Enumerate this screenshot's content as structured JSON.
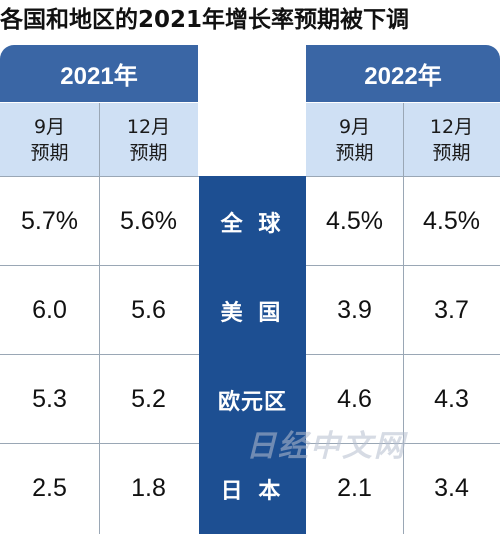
{
  "title": "各国和地区的2021年增长率预期被下调",
  "watermark": "日经中文网",
  "chart_data": {
    "type": "table",
    "title": "各国和地区的2021年增长率预期被下调",
    "year_headers": [
      "2021年",
      "2022年"
    ],
    "column_headers": [
      {
        "line1": "9月",
        "line2": "预期"
      },
      {
        "line1": "12月",
        "line2": "预期"
      },
      {
        "line1": "9月",
        "line2": "预期"
      },
      {
        "line1": "12月",
        "line2": "预期"
      }
    ],
    "rows": [
      {
        "region": "全 球",
        "values": [
          "5.7%",
          "5.6%",
          "4.5%",
          "4.5%"
        ]
      },
      {
        "region": "美 国",
        "values": [
          "6.0",
          "5.6",
          "3.9",
          "3.7"
        ]
      },
      {
        "region": "欧元区",
        "values": [
          "5.3",
          "5.2",
          "4.6",
          "4.3"
        ]
      },
      {
        "region": "日 本",
        "values": [
          "2.5",
          "1.8",
          "2.1",
          "3.4"
        ]
      }
    ]
  },
  "colors": {
    "header_blue": "#3a66a5",
    "subheader_light_blue": "#cfe0f4",
    "region_column_blue": "#1d4f92",
    "grid_line": "#9aa7b5"
  }
}
